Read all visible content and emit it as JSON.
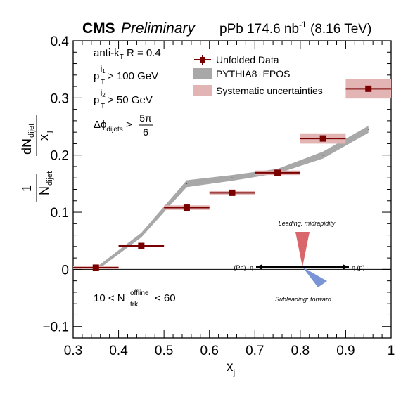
{
  "header": {
    "experiment": "CMS",
    "status": "Preliminary",
    "dataset_pre": "pPb 174.6 nb",
    "dataset_exp": "-1",
    "dataset_post": " (8.16 TeV)"
  },
  "cuts": {
    "jet_alg_pre": "anti-k",
    "jet_alg_sub": "T",
    "jet_alg_post": " R = 0.4",
    "pt1_base": "p",
    "pt1_sup": "j",
    "pt1_supsub": "1",
    "pt1_sub": "T",
    "pt1_rest": " > 100 GeV",
    "pt2_base": "p",
    "pt2_sup": "j",
    "pt2_supsub": "2",
    "pt2_sub": "T",
    "pt2_rest": " > 50 GeV",
    "dphi_pre": "Δϕ",
    "dphi_sub": "dijets",
    "dphi_gt": " > ",
    "dphi_num": "5π",
    "dphi_den": "6",
    "mult_pre": "10 < N",
    "mult_sup": "offline",
    "mult_sub": "trk",
    "mult_post": " < 60"
  },
  "legend": {
    "data": "Unfolded Data",
    "mc": "PYTHIA8+EPOS",
    "syst": "Systematic uncertainties"
  },
  "yaxis": {
    "num_base": "dN",
    "num_sub": "dijet",
    "den_var": "x",
    "den_var_sub": "j",
    "norm_num": "1",
    "norm_den": "N",
    "norm_den_sub": "dijet"
  },
  "xaxis": {
    "label": "x",
    "label_sub": "j"
  },
  "inset": {
    "leading": "Leading: midrapidity",
    "subleading": "Subleading: forward",
    "left_label": "(Pb) -η",
    "right_label": "η (p)"
  },
  "colors": {
    "data": "#7a0000",
    "syst": "#e2b4b4",
    "mc": "#a8a8a8",
    "leading": "#d9666a",
    "subleading": "#7a95d6"
  },
  "chart_data": {
    "type": "scatter",
    "xlim": [
      0.3,
      1.0
    ],
    "ylim": [
      -0.12,
      0.4
    ],
    "x_ticks": [
      "0.3",
      "0.4",
      "0.5",
      "0.6",
      "0.7",
      "0.8",
      "0.9",
      "1"
    ],
    "y_ticks": [
      "−0.1",
      "0",
      "0.1",
      "0.2",
      "0.3",
      "0.4"
    ],
    "series": [
      {
        "name": "Unfolded Data",
        "points": [
          {
            "x": 0.35,
            "y": 0.003,
            "xerr": 0.05,
            "syst": 0.002
          },
          {
            "x": 0.45,
            "y": 0.041,
            "xerr": 0.05,
            "syst": 0.002
          },
          {
            "x": 0.55,
            "y": 0.108,
            "xerr": 0.05,
            "syst": 0.004
          },
          {
            "x": 0.65,
            "y": 0.134,
            "xerr": 0.05,
            "syst": 0.003
          },
          {
            "x": 0.75,
            "y": 0.169,
            "xerr": 0.05,
            "syst": 0.004
          },
          {
            "x": 0.85,
            "y": 0.229,
            "xerr": 0.05,
            "syst": 0.009
          },
          {
            "x": 0.95,
            "y": 0.316,
            "xerr": 0.05,
            "syst": 0.017
          }
        ]
      },
      {
        "name": "PYTHIA8+EPOS",
        "band": [
          {
            "x": 0.35,
            "y": 0.0,
            "err": 0.003
          },
          {
            "x": 0.45,
            "y": 0.06,
            "err": 0.004
          },
          {
            "x": 0.55,
            "y": 0.15,
            "err": 0.006
          },
          {
            "x": 0.65,
            "y": 0.16,
            "err": 0.005
          },
          {
            "x": 0.75,
            "y": 0.172,
            "err": 0.004
          },
          {
            "x": 0.85,
            "y": 0.2,
            "err": 0.006
          },
          {
            "x": 0.95,
            "y": 0.245,
            "err": 0.006
          }
        ]
      }
    ]
  }
}
